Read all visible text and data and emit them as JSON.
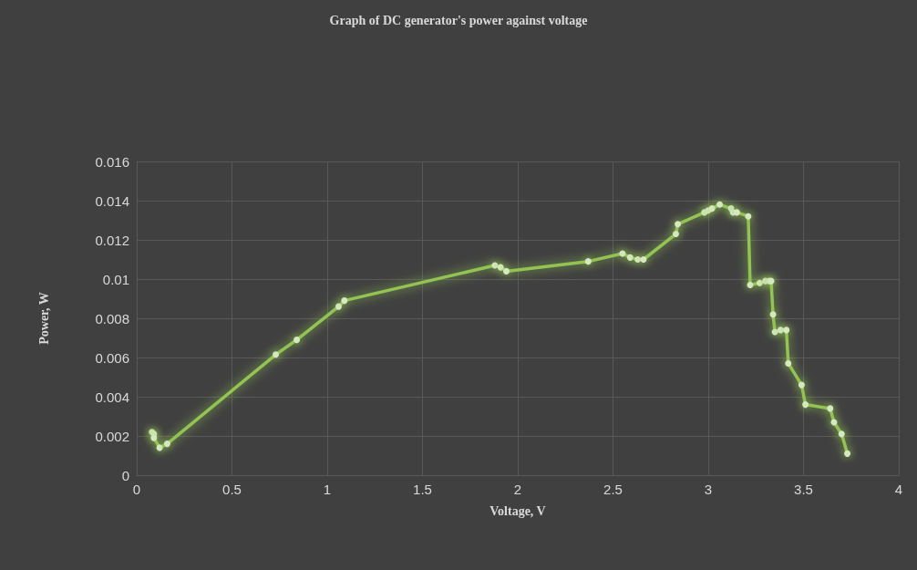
{
  "chart_data": {
    "type": "line",
    "title": "Graph of DC generator's power against voltage",
    "xlabel": "Voltage, V",
    "ylabel": "Power, W",
    "xlim": [
      0,
      4
    ],
    "xticks": [
      0,
      0.5,
      1,
      1.5,
      2,
      2.5,
      3,
      3.5,
      4
    ],
    "ylim": [
      0,
      0.016
    ],
    "yticks": [
      0,
      0.002,
      0.004,
      0.006,
      0.008,
      0.01,
      0.012,
      0.014,
      0.016
    ],
    "grid": true,
    "marker": "circle",
    "line_style": "solid",
    "series": [
      {
        "color": "#92c353",
        "x": [
          0.08,
          0.09,
          0.09,
          0.12,
          0.16,
          0.73,
          0.84,
          1.06,
          1.09,
          1.88,
          1.91,
          1.94,
          2.37,
          2.55,
          2.59,
          2.63,
          2.66,
          2.83,
          2.84,
          2.98,
          3.0,
          3.02,
          3.06,
          3.12,
          3.13,
          3.15,
          3.21,
          3.22,
          3.27,
          3.3,
          3.32,
          3.33,
          3.34,
          3.35,
          3.38,
          3.41,
          3.42,
          3.49,
          3.51,
          3.64,
          3.66,
          3.7,
          3.73
        ],
        "values": [
          0.0022,
          0.0021,
          0.0019,
          0.0014,
          0.0016,
          0.00615,
          0.0069,
          0.0086,
          0.0089,
          0.0107,
          0.0106,
          0.0104,
          0.0109,
          0.0113,
          0.0111,
          0.011,
          0.011,
          0.0123,
          0.0128,
          0.0134,
          0.0135,
          0.0136,
          0.0138,
          0.0136,
          0.0134,
          0.0134,
          0.0132,
          0.0097,
          0.0098,
          0.0099,
          0.0099,
          0.0099,
          0.0082,
          0.0073,
          0.0074,
          0.0074,
          0.0057,
          0.0046,
          0.0036,
          0.0034,
          0.0027,
          0.0021,
          0.0011
        ]
      }
    ]
  }
}
